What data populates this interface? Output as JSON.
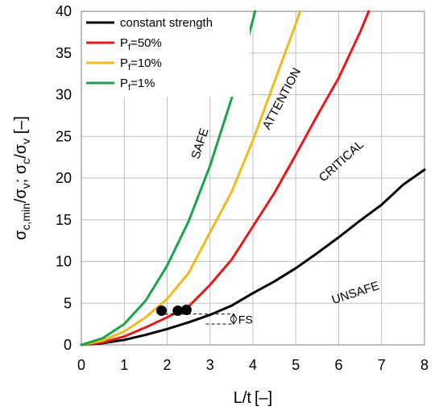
{
  "chart_data": {
    "type": "line",
    "x_axis": {
      "label_main": "L/t",
      "label_unit": "[–]",
      "range": [
        0,
        8
      ],
      "ticks": [
        0,
        1,
        2,
        3,
        4,
        5,
        6,
        7,
        8
      ]
    },
    "y_axis": {
      "label_parts": {
        "a": "σ",
        "a_sub": "c,min",
        "b": "/σ",
        "b_sub": "v",
        "c": "; σ",
        "c_sub": "c",
        "d": "/σ",
        "d_sub": "v",
        "e": " [–]"
      },
      "range": [
        0,
        40
      ],
      "ticks": [
        0,
        5,
        10,
        15,
        20,
        25,
        30,
        35,
        40
      ]
    },
    "grid": true,
    "legend_position": "top-left",
    "series": [
      {
        "name": "constant strength",
        "legend_main": "constant strength",
        "legend_sub": "",
        "legend_suffix": "",
        "color": "#000000",
        "points": [
          [
            0,
            0
          ],
          [
            0.5,
            0.2
          ],
          [
            1,
            0.6
          ],
          [
            1.5,
            1.2
          ],
          [
            2,
            1.9
          ],
          [
            2.5,
            2.7
          ],
          [
            3,
            3.6
          ],
          [
            3.5,
            4.7
          ],
          [
            4,
            6.2
          ],
          [
            4.5,
            7.6
          ],
          [
            5,
            9.2
          ],
          [
            5.5,
            11.0
          ],
          [
            6,
            12.9
          ],
          [
            6.5,
            14.9
          ],
          [
            7,
            16.8
          ],
          [
            7.5,
            19.2
          ],
          [
            8,
            21.0
          ]
        ]
      },
      {
        "name": "Pf=50%",
        "legend_main": "P",
        "legend_sub": "f",
        "legend_suffix": "=50%",
        "color": "#e61919",
        "points": [
          [
            0,
            0
          ],
          [
            0.5,
            0.3
          ],
          [
            1,
            1.0
          ],
          [
            1.5,
            2.1
          ],
          [
            2,
            3.3
          ],
          [
            2.5,
            4.6
          ],
          [
            3,
            7.2
          ],
          [
            3.5,
            10.2
          ],
          [
            4,
            14.2
          ],
          [
            4.5,
            18.2
          ],
          [
            5,
            22.8
          ],
          [
            5.5,
            27.5
          ],
          [
            6,
            32.0
          ],
          [
            6.5,
            37.5
          ],
          [
            6.7,
            40.0
          ]
        ]
      },
      {
        "name": "Pf=10%",
        "legend_main": "P",
        "legend_sub": "f",
        "legend_suffix": "=10%",
        "color": "#f2b81e",
        "points": [
          [
            0,
            0
          ],
          [
            0.5,
            0.5
          ],
          [
            1,
            1.6
          ],
          [
            1.5,
            3.3
          ],
          [
            2,
            5.5
          ],
          [
            2.5,
            8.6
          ],
          [
            3,
            13.5
          ],
          [
            3.5,
            18.3
          ],
          [
            4,
            24.5
          ],
          [
            4.5,
            31.5
          ],
          [
            5,
            38.5
          ],
          [
            5.1,
            40.0
          ]
        ]
      },
      {
        "name": "Pf=1%",
        "legend_main": "P",
        "legend_sub": "f",
        "legend_suffix": "=1%",
        "color": "#1aa34a",
        "points": [
          [
            0,
            0
          ],
          [
            0.5,
            0.8
          ],
          [
            1,
            2.5
          ],
          [
            1.5,
            5.3
          ],
          [
            2,
            9.5
          ],
          [
            2.5,
            14.8
          ],
          [
            3,
            21.5
          ],
          [
            3.5,
            29.5
          ],
          [
            4,
            39.0
          ],
          [
            4.05,
            40.0
          ]
        ]
      }
    ],
    "markers": [
      {
        "x": 1.87,
        "y": 4.1
      },
      {
        "x": 2.25,
        "y": 4.1
      },
      {
        "x": 2.45,
        "y": 4.2
      }
    ],
    "annotations": {
      "safe": "SAFE",
      "attention": "ATTENTION",
      "critical": "CRITICAL",
      "unsafe": "UNSAFE",
      "fs": "FS"
    }
  }
}
